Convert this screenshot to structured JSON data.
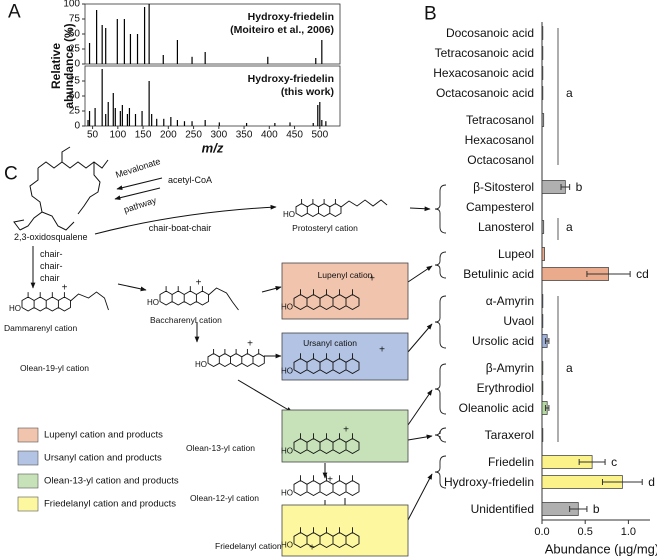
{
  "panel_labels": [
    "A",
    "B",
    "C"
  ],
  "chart_data": [
    {
      "type": "spectrum",
      "annotation": [
        "Hydroxy-friedelin",
        "(Moiteiro et al., 2006)"
      ],
      "ylabel": [
        "Relative",
        "abundance (%)"
      ],
      "x": [
        44,
        58,
        69,
        76,
        99,
        113,
        125,
        139,
        153,
        162,
        190,
        218,
        247,
        273,
        397,
        492,
        504
      ],
      "values": [
        35,
        90,
        65,
        60,
        75,
        75,
        50,
        50,
        95,
        100,
        15,
        40,
        12,
        20,
        12,
        10,
        40
      ],
      "color": "#000000",
      "xlim": [
        35,
        540
      ],
      "ylim": [
        0,
        100
      ],
      "yticks": [
        0,
        25,
        50,
        75,
        100
      ]
    },
    {
      "type": "spectrum",
      "annotation": [
        "Hydroxy-friedelin",
        "(this work)"
      ],
      "xlabel": "m/z",
      "x": [
        41,
        44,
        55,
        69,
        76,
        81,
        91,
        95,
        105,
        109,
        119,
        123,
        135,
        148,
        162,
        167,
        177,
        191,
        205,
        218,
        232,
        247,
        273,
        301,
        355,
        411,
        441,
        487,
        496,
        500,
        504,
        512
      ],
      "values": [
        10,
        25,
        30,
        95,
        20,
        40,
        55,
        30,
        25,
        35,
        20,
        30,
        20,
        25,
        75,
        20,
        12,
        12,
        15,
        10,
        8,
        8,
        10,
        6,
        5,
        5,
        6,
        5,
        35,
        40,
        10,
        8
      ],
      "color": "#000000",
      "xlim": [
        35,
        540
      ],
      "ylim": [
        0,
        100
      ],
      "yticks": [
        0,
        25,
        50,
        75
      ],
      "xticks": [
        50,
        100,
        150,
        200,
        250,
        300,
        350,
        400,
        450,
        500
      ]
    },
    {
      "type": "hbar",
      "categories": [
        "Docosanoic acid",
        "Tetracosanoic acid",
        "Hexacosanoic acid",
        "Octacosanoic acid",
        "Tetracosanol",
        "Hexacosanol",
        "Octacosanol",
        "β-Sitosterol",
        "Campesterol",
        "Lanosterol",
        "Lupeol",
        "Betulinic acid",
        "α-Amyrin",
        "Uvaol",
        "Ursolic acid",
        "β-Amyrin",
        "Erythrodiol",
        "Oleanolic acid",
        "Taraxerol",
        "Friedelin",
        "Hydroxy-friedelin",
        "Unidentified"
      ],
      "values": [
        0.01,
        0.01,
        0.01,
        0.01,
        0.02,
        0,
        0,
        0.27,
        0,
        0.02,
        0.03,
        0.77,
        0.01,
        0.01,
        0.06,
        0.01,
        0.01,
        0.06,
        0.01,
        0.58,
        0.93,
        0.42
      ],
      "errors": [
        null,
        null,
        null,
        null,
        null,
        null,
        null,
        0.05,
        null,
        null,
        null,
        0.25,
        null,
        null,
        0.02,
        null,
        null,
        0.02,
        null,
        0.15,
        0.23,
        0.1
      ],
      "colors": [
        "#b0b0b0",
        "#b0b0b0",
        "#b0b0b0",
        "#b0b0b0",
        "#b0b0b0",
        "#b0b0b0",
        "#b0b0b0",
        "#b0b0b0",
        "#b0b0b0",
        "#b0b0b0",
        "#e9ab8c",
        "#e9ab8c",
        "#9fb2dd",
        "#9fb2dd",
        "#9fb2dd",
        "#b5d9a0",
        "#b5d9a0",
        "#b5d9a0",
        "#b0b0b0",
        "#fbf38a",
        "#fbf38a",
        "#b0b0b0"
      ],
      "significance": [
        null,
        null,
        null,
        "a",
        null,
        null,
        null,
        "b",
        null,
        "a",
        null,
        "cd",
        null,
        null,
        null,
        "a",
        null,
        null,
        null,
        "c",
        "d",
        "b"
      ],
      "xlim": [
        0,
        1.25
      ],
      "xticks": [
        {
          "value": 0,
          "label": "0.0"
        },
        0.5,
        {
          "value": 1,
          "label": "1.0"
        }
      ],
      "xlabel": "Abundance (µg/mg)"
    }
  ],
  "diagram": {
    "precursor": "2,3-oxidosqualene",
    "pathway": [
      "Mevalonate",
      "pathway"
    ],
    "source": "acetyl-CoA",
    "folding": [
      "chair-boat-chair",
      [
        "chair-",
        "chair-",
        "chair"
      ]
    ],
    "cations": [
      "Protosteryl cation",
      "Dammarenyl cation",
      "Baccharenyl cation",
      "Lupenyl cation",
      "Olean-19-yl cation",
      "Ursanyl cation",
      "Olean-13-yl cation",
      "Olean-12-yl cation",
      "Friedelanyl cation"
    ],
    "hydroxyl": "HO",
    "charge": "+",
    "legend": [
      "Lupenyl cation and products",
      "Ursanyl cation and products",
      "Olean-13-yl cation and products",
      "Friedelanyl cation and products"
    ]
  }
}
